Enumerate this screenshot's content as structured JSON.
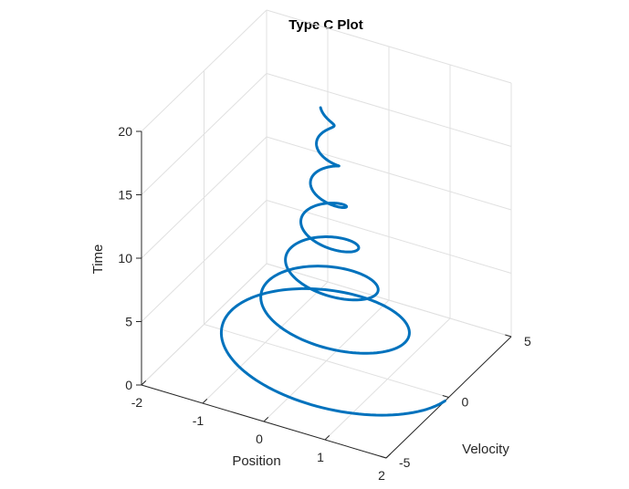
{
  "chart_data": {
    "type": "line",
    "projection": "3d",
    "title": "Type C Plot",
    "xlabel": "Position",
    "ylabel": "Velocity",
    "zlabel": "Time",
    "xlim": [
      -2,
      2
    ],
    "ylim": [
      -5,
      5
    ],
    "zlim": [
      0,
      20
    ],
    "xticks": [
      "-2",
      "-1",
      "0",
      "1",
      "2"
    ],
    "yticks": [
      "-5",
      "0",
      "5"
    ],
    "zticks": [
      "0",
      "5",
      "10",
      "15",
      "20"
    ],
    "grid": true,
    "series": [
      {
        "color": "#0072BD",
        "equation": "position = 2*exp(-0.15*t)*cos(2*t); velocity = derivative of position; time = t",
        "t_range": [
          0,
          20
        ]
      }
    ]
  }
}
